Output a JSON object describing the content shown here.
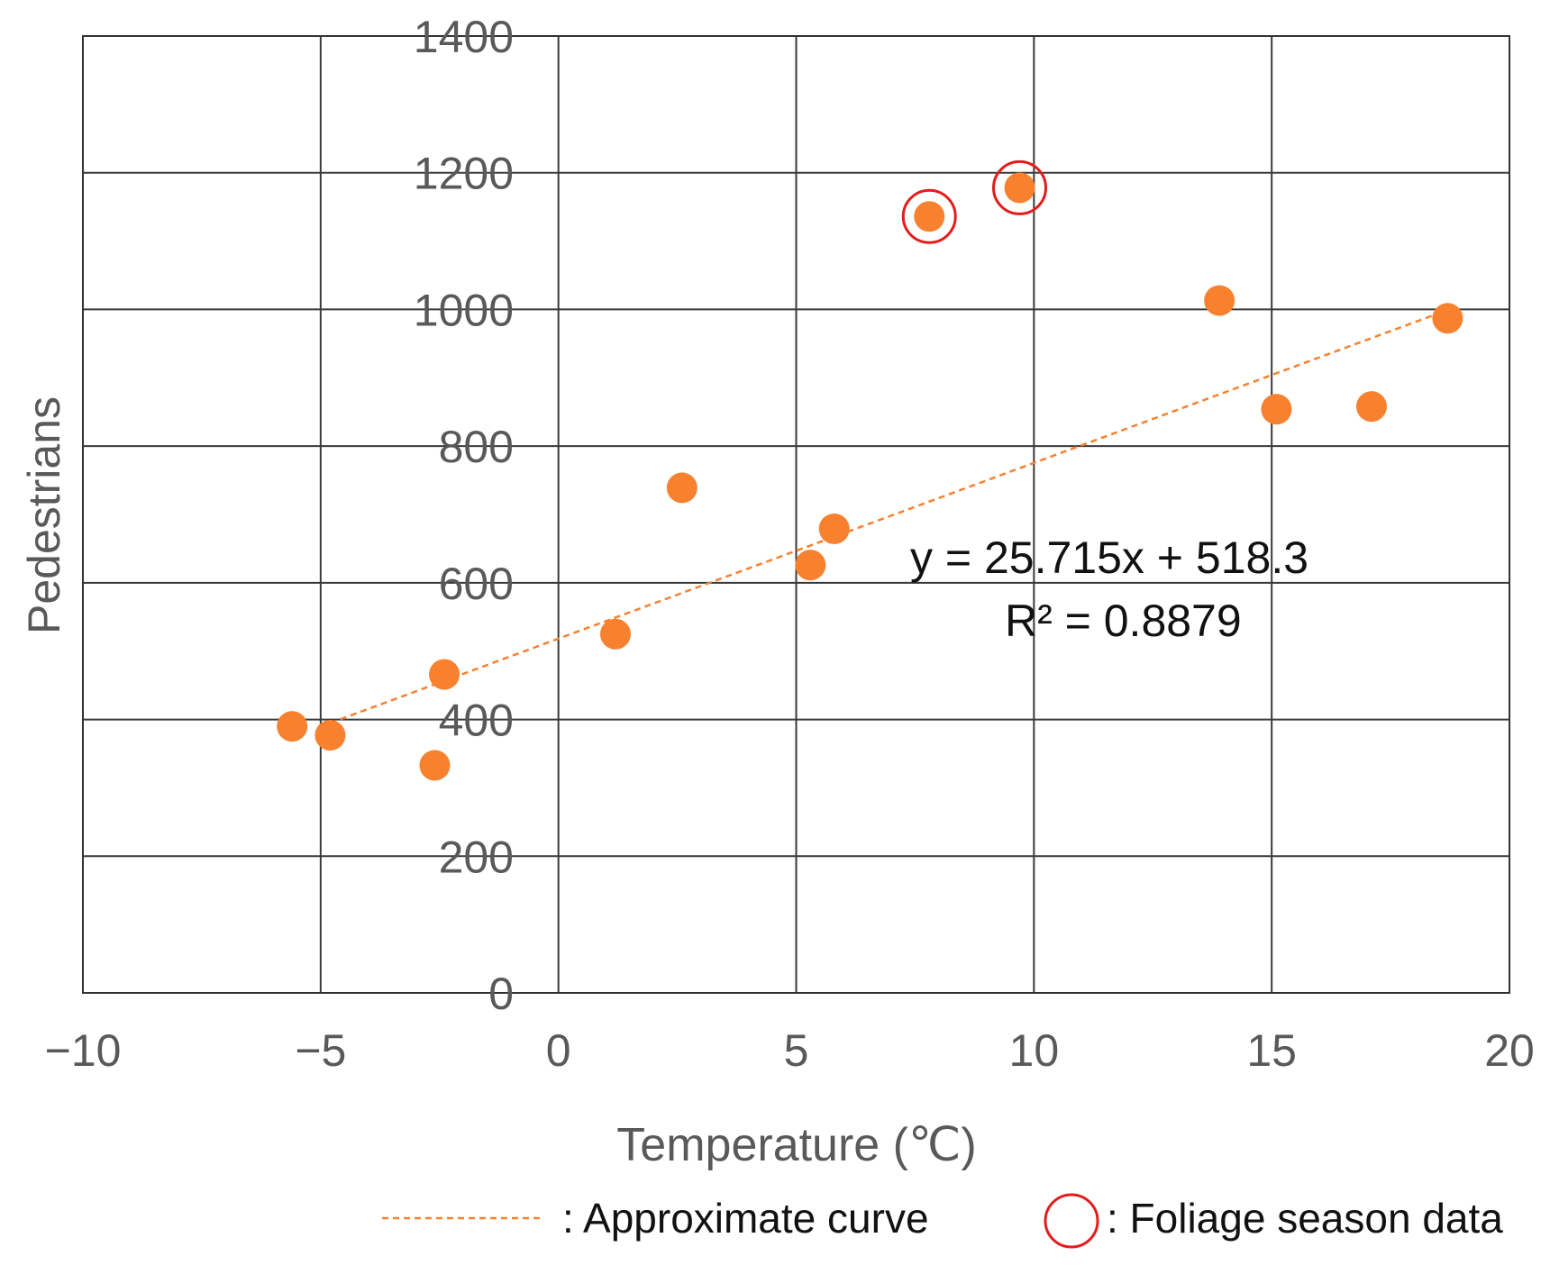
{
  "chart_data": {
    "type": "scatter",
    "title": "",
    "xlabel": "Temperature (℃)",
    "ylabel": "Pedestrians",
    "xlim": [
      -10,
      20
    ],
    "ylim": [
      0,
      1400
    ],
    "xticks": [
      -10,
      -5,
      0,
      5,
      10,
      15,
      20
    ],
    "yticks": [
      0,
      200,
      400,
      600,
      800,
      1000,
      1200,
      1400
    ],
    "xtick_labels": [
      "−10",
      "−5",
      "0",
      "5",
      "10",
      "15",
      "20"
    ],
    "ytick_labels": [
      "0",
      "200",
      "400",
      "600",
      "800",
      "1000",
      "1200",
      "1400"
    ],
    "grid": true,
    "series": [
      {
        "name": "Pedestrians",
        "color": "#f7812e",
        "points": [
          {
            "x": -5.6,
            "y": 390,
            "foliage": false
          },
          {
            "x": -4.8,
            "y": 377,
            "foliage": false
          },
          {
            "x": -2.6,
            "y": 333,
            "foliage": false
          },
          {
            "x": -2.4,
            "y": 466,
            "foliage": false
          },
          {
            "x": 1.2,
            "y": 525,
            "foliage": false
          },
          {
            "x": 2.6,
            "y": 739,
            "foliage": false
          },
          {
            "x": 5.3,
            "y": 626,
            "foliage": false
          },
          {
            "x": 5.8,
            "y": 679,
            "foliage": false
          },
          {
            "x": 7.8,
            "y": 1136,
            "foliage": true
          },
          {
            "x": 9.7,
            "y": 1178,
            "foliage": true
          },
          {
            "x": 13.9,
            "y": 1013,
            "foliage": false
          },
          {
            "x": 15.1,
            "y": 854,
            "foliage": false
          },
          {
            "x": 17.1,
            "y": 858,
            "foliage": false
          },
          {
            "x": 18.7,
            "y": 987,
            "foliage": false
          }
        ]
      }
    ],
    "trendline": {
      "slope": 25.715,
      "intercept": 518.3,
      "x_range": [
        -4.8,
        18.7
      ],
      "color": "#f7812e",
      "equation": "y = 25.715x + 518.3",
      "r_squared": "R² = 0.8879"
    },
    "foliage_color": "#e31c1c",
    "legend": {
      "position": "bottom",
      "trend_label": ": Approximate curve",
      "foliage_label": ": Foliage season data"
    }
  }
}
